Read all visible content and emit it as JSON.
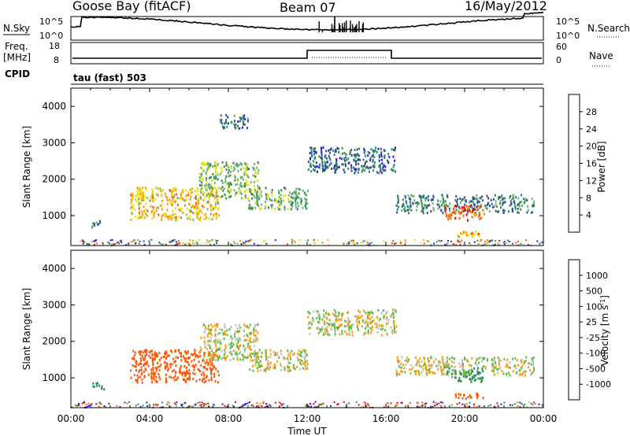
{
  "header": {
    "station": "Goose Bay (fitACF)",
    "beam": "Beam 07",
    "date": "16/May/2012"
  },
  "noise_panel": {
    "left_label": "N.Sky",
    "right_label": "N.Search",
    "left_top_tick": "10^5",
    "left_bottom_tick": "10^0",
    "right_top_tick": "10^5",
    "right_bottom_tick": "10^0"
  },
  "freq_panel": {
    "left_label_top": "Freq.",
    "left_label_unit": "[MHz]",
    "right_label": "Nave",
    "left_ticks": [
      "18",
      "8"
    ],
    "right_ticks": [
      "60",
      "0"
    ]
  },
  "cpid_panel": {
    "label": "CPID",
    "text": "tau (fast) 503"
  },
  "colors": {
    "power_scale": [
      "#1a1ad8",
      "#2f4f9a",
      "#2e8b57",
      "#6db36d",
      "#e8e000",
      "#ff9900",
      "#ff5500",
      "#dd0000"
    ],
    "velocity_scale": [
      "#1a1ad8",
      "#2f5fa8",
      "#2e8b57",
      "#55bb44",
      "#bebebe",
      "#bebebe",
      "#ff9900",
      "#ff5500",
      "#dd0000"
    ]
  },
  "chart_data": [
    {
      "type": "heatmap",
      "title": "",
      "quantity": "Power",
      "xlabel": "",
      "ylabel": "Slant Range [km]",
      "xlim": [
        "00:00",
        "00:00"
      ],
      "ylim": [
        180,
        4500
      ],
      "yticks": [
        "1000",
        "2000",
        "3000",
        "4000"
      ],
      "colorbar_label": "Power [dB]",
      "colorbar_ticks": [
        "4",
        "8",
        "12",
        "16",
        "20",
        "24",
        "28"
      ],
      "regions": [
        {
          "time_start": "01:00",
          "time_end": "01:40",
          "range_min": 700,
          "range_max": 900,
          "value_dB": 10
        },
        {
          "time_start": "03:00",
          "time_end": "07:30",
          "range_min": 900,
          "range_max": 1800,
          "value_dB": 20
        },
        {
          "time_start": "06:30",
          "time_end": "09:30",
          "range_min": 1500,
          "range_max": 2500,
          "value_dB": 14
        },
        {
          "time_start": "09:00",
          "time_end": "12:00",
          "range_min": 1200,
          "range_max": 1800,
          "value_dB": 13
        },
        {
          "time_start": "07:30",
          "time_end": "09:00",
          "range_min": 3400,
          "range_max": 3800,
          "value_dB": 8
        },
        {
          "time_start": "12:00",
          "time_end": "16:30",
          "range_min": 2200,
          "range_max": 2900,
          "value_dB": 7
        },
        {
          "time_start": "16:30",
          "time_end": "23:30",
          "range_min": 1100,
          "range_max": 1600,
          "value_dB": 9
        },
        {
          "time_start": "19:00",
          "time_end": "21:00",
          "range_min": 900,
          "range_max": 1300,
          "value_dB": 26
        },
        {
          "time_start": "19:30",
          "time_end": "21:00",
          "range_min": 450,
          "range_max": 600,
          "value_dB": 22
        }
      ]
    },
    {
      "type": "heatmap",
      "title": "",
      "quantity": "Velocity",
      "xlabel": "Time UT",
      "ylabel": "Slant Range [km]",
      "xticks": [
        "00:00",
        "04:00",
        "08:00",
        "12:00",
        "16:00",
        "20:00",
        "00:00"
      ],
      "ylim": [
        180,
        4500
      ],
      "yticks": [
        "1000",
        "2000",
        "3000",
        "4000"
      ],
      "colorbar_label": "Velocity [m s",
      "colorbar_label_sup": "-1",
      "colorbar_label_end": "]",
      "colorbar_ticks": [
        "1000",
        "500",
        "100",
        "25",
        "-25",
        "-100",
        "-500",
        "-1000"
      ],
      "regions": [
        {
          "time_start": "01:00",
          "time_end": "01:40",
          "range_min": 700,
          "range_max": 900,
          "velocity": 200
        },
        {
          "time_start": "03:00",
          "time_end": "07:30",
          "range_min": 900,
          "range_max": 1800,
          "velocity": -300
        },
        {
          "time_start": "06:30",
          "time_end": "09:30",
          "range_min": 1500,
          "range_max": 2500,
          "velocity": 0
        },
        {
          "time_start": "09:00",
          "time_end": "12:00",
          "range_min": 1200,
          "range_max": 1800,
          "velocity": 0
        },
        {
          "time_start": "12:00",
          "time_end": "16:30",
          "range_min": 2200,
          "range_max": 2900,
          "velocity": 0
        },
        {
          "time_start": "16:30",
          "time_end": "23:30",
          "range_min": 1100,
          "range_max": 1600,
          "velocity": 0
        },
        {
          "time_start": "19:00",
          "time_end": "21:00",
          "range_min": 900,
          "range_max": 1300,
          "velocity": 150
        },
        {
          "time_start": "19:30",
          "time_end": "21:00",
          "range_min": 450,
          "range_max": 600,
          "velocity": -300
        }
      ]
    }
  ]
}
